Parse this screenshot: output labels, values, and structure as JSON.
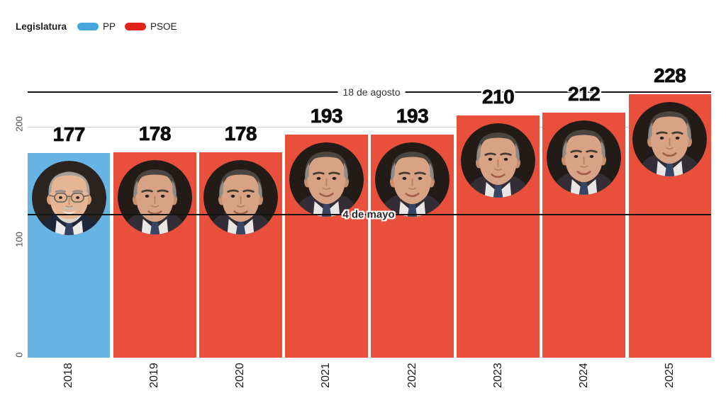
{
  "legend": {
    "title": "Legislatura",
    "items": [
      {
        "label": "PP",
        "color": "#45a5dc"
      },
      {
        "label": "PSOE",
        "color": "#e2241a"
      }
    ]
  },
  "chart_data": {
    "type": "bar",
    "title": "",
    "xlabel": "",
    "ylabel": "",
    "categories": [
      "2018",
      "2019",
      "2020",
      "2021",
      "2022",
      "2023",
      "2024",
      "2025"
    ],
    "values": [
      177,
      178,
      178,
      193,
      193,
      210,
      212,
      228
    ],
    "bar_parties": [
      "PP",
      "PSOE",
      "PSOE",
      "PSOE",
      "PSOE",
      "PSOE",
      "PSOE",
      "PSOE"
    ],
    "bar_persons": [
      "rajoy",
      "sanchez",
      "sanchez",
      "sanchez",
      "sanchez",
      "sanchez",
      "sanchez",
      "sanchez"
    ],
    "party_colors": {
      "PP": "#66b4e4",
      "PSOE": "#e8503c"
    },
    "yticks": [
      "0",
      "100",
      "200"
    ],
    "ylim": [
      0,
      245
    ],
    "grid_values": [
      200
    ],
    "grid_on": true,
    "legend_position": "top-left",
    "reference_lines": [
      {
        "label": "18 de agosto",
        "value": 230
      },
      {
        "label": "4 de mayo",
        "value": 124
      }
    ]
  }
}
